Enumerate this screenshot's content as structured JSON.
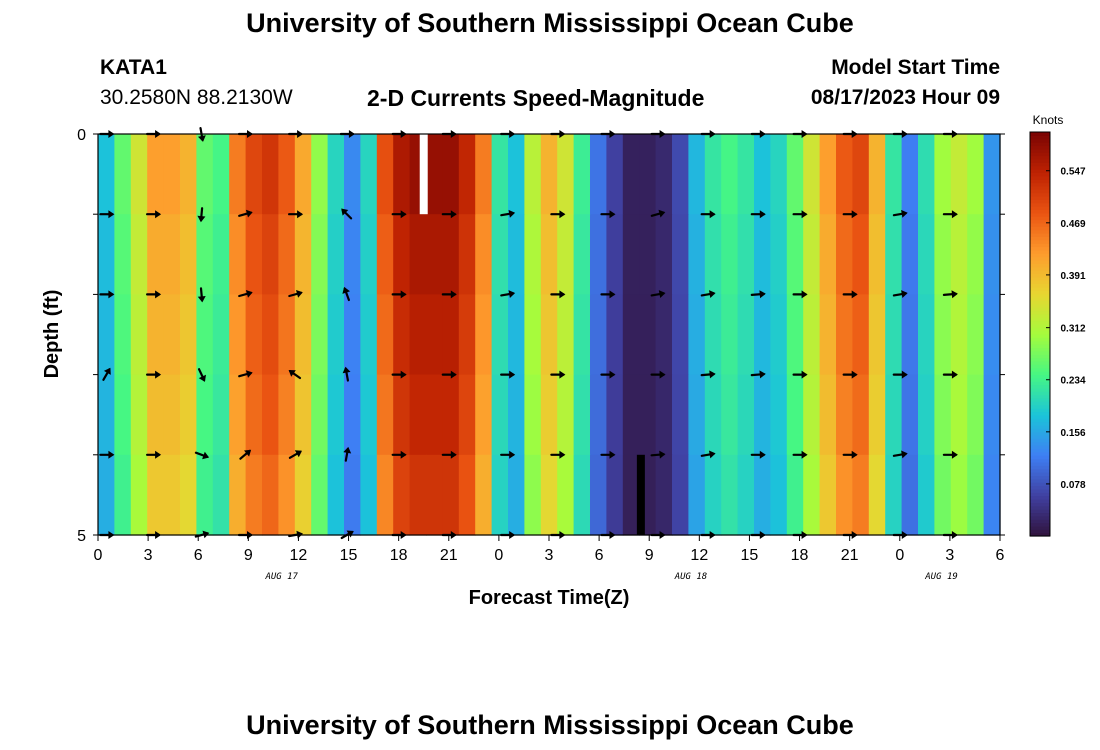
{
  "title": "University of Southern Mississippi Ocean Cube",
  "bottom_title": "University of Southern Mississippi Ocean Cube",
  "station": {
    "id": "KATA1",
    "coords": "30.2580N  88.2130W"
  },
  "subtitle": "2-D Currents Speed-Magnitude",
  "model": {
    "label": "Model Start Time",
    "value": "08/17/2023 Hour 09"
  },
  "chart_data": {
    "type": "heatmap",
    "title": "2-D Currents Speed-Magnitude",
    "xlabel": "Forecast Time(Z)",
    "ylabel": "Depth (ft)",
    "xlim": [
      0,
      54
    ],
    "ylim": [
      0,
      5
    ],
    "xticks": [
      "0",
      "3",
      "6",
      "9",
      "12",
      "15",
      "18",
      "21",
      "0",
      "3",
      "6",
      "9",
      "12",
      "15",
      "18",
      "21",
      "0",
      "3",
      "6"
    ],
    "yticks": [
      "0",
      "5"
    ],
    "date_labels": [
      {
        "text": "AUG 17",
        "x": 11
      },
      {
        "text": "AUG 18",
        "x": 35.5
      },
      {
        "text": "AUG 19",
        "x": 50.5
      }
    ],
    "colorbar": {
      "label": "Knots",
      "ticks": [
        "0.547",
        "0.469",
        "0.391",
        "0.312",
        "0.234",
        "0.156",
        "0.078"
      ],
      "tick_values": [
        0.547,
        0.469,
        0.391,
        0.312,
        0.234,
        0.156,
        0.078
      ],
      "min": 0.0,
      "max": 0.605
    },
    "depth_rows": 5,
    "speed_by_hour": [
      0.18,
      0.26,
      0.34,
      0.42,
      0.42,
      0.4,
      0.26,
      0.24,
      0.45,
      0.5,
      0.52,
      0.48,
      0.41,
      0.29,
      0.2,
      0.13,
      0.2,
      0.49,
      0.56,
      0.58,
      0.58,
      0.58,
      0.54,
      0.45,
      0.22,
      0.18,
      0.32,
      0.4,
      0.34,
      0.23,
      0.11,
      0.06,
      0.02,
      0.02,
      0.03,
      0.07,
      0.17,
      0.22,
      0.24,
      0.22,
      0.18,
      0.2,
      0.26,
      0.34,
      0.42,
      0.48,
      0.5,
      0.4,
      0.22,
      0.12,
      0.21,
      0.3,
      0.33,
      0.3,
      0.14
    ],
    "depth_factors": [
      1.0,
      0.97,
      0.95,
      0.93,
      0.9
    ],
    "anomalies": [
      {
        "hour": 19.5,
        "row": 0,
        "color": "#ffffff",
        "h_frac": 1.0
      },
      {
        "hour": 32.5,
        "row": 4,
        "color": "#000000",
        "h_frac": 1.0
      }
    ],
    "arrow_hours": [
      0.5,
      3.3,
      6.2,
      8.8,
      11.8,
      14.9,
      18.0,
      21.0,
      24.5,
      27.5,
      30.5,
      33.5,
      36.5,
      39.5,
      42.0,
      45.0,
      48.0,
      51.0
    ],
    "arrow_depths": [
      0,
      1,
      2,
      3,
      4,
      5
    ],
    "arrow_angles_deg": [
      [
        0,
        0,
        -80,
        0,
        0,
        0,
        0,
        0,
        0,
        0,
        0,
        0,
        0,
        0,
        0,
        0,
        0,
        0
      ],
      [
        0,
        0,
        -95,
        15,
        0,
        135,
        0,
        0,
        10,
        0,
        0,
        15,
        0,
        0,
        0,
        0,
        10,
        0
      ],
      [
        0,
        0,
        -85,
        15,
        15,
        110,
        0,
        0,
        10,
        0,
        0,
        10,
        10,
        5,
        0,
        0,
        10,
        5
      ],
      [
        60,
        0,
        -65,
        15,
        145,
        100,
        0,
        0,
        0,
        0,
        0,
        0,
        5,
        5,
        0,
        0,
        0,
        0
      ],
      [
        0,
        0,
        -20,
        40,
        30,
        80,
        0,
        0,
        0,
        0,
        0,
        5,
        10,
        0,
        0,
        0,
        10,
        0
      ],
      [
        0,
        0,
        15,
        0,
        10,
        30,
        0,
        0,
        0,
        0,
        0,
        0,
        0,
        0,
        0,
        0,
        0,
        0
      ]
    ]
  }
}
